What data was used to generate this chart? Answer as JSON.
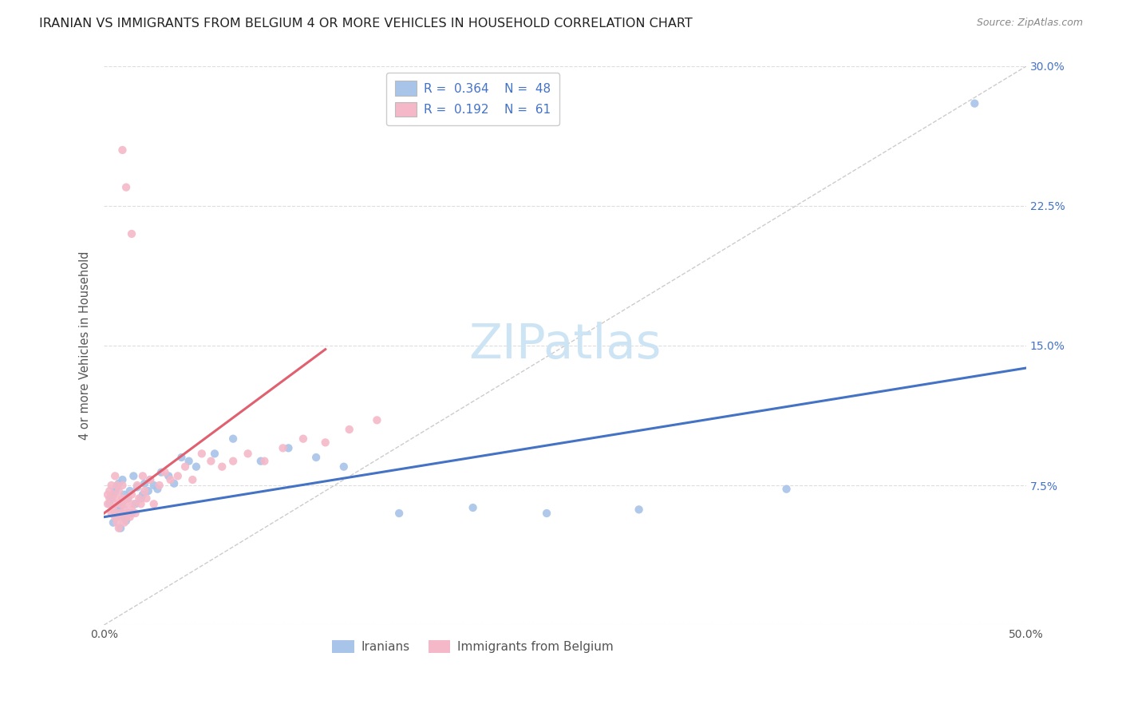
{
  "title": "IRANIAN VS IMMIGRANTS FROM BELGIUM 4 OR MORE VEHICLES IN HOUSEHOLD CORRELATION CHART",
  "source": "Source: ZipAtlas.com",
  "ylabel": "4 or more Vehicles in Household",
  "xlim": [
    0.0,
    0.5
  ],
  "ylim": [
    0.0,
    0.3
  ],
  "iranian_color": "#a8c4e8",
  "iranian_line_color": "#4472c4",
  "belgian_color": "#f4b8c8",
  "belgian_line_color": "#e06070",
  "R_iranian": "0.364",
  "N_iranian": "48",
  "R_belgian": "0.192",
  "N_belgian": "61",
  "watermark_text": "ZIPatlas",
  "watermark_color": "#cde4f5",
  "grid_color": "#dddddd",
  "title_color": "#222222",
  "source_color": "#888888",
  "tick_color": "#4472c4",
  "ylabel_color": "#555555",
  "iranian_x": [
    0.003,
    0.004,
    0.005,
    0.005,
    0.006,
    0.006,
    0.007,
    0.007,
    0.008,
    0.008,
    0.009,
    0.009,
    0.01,
    0.01,
    0.011,
    0.011,
    0.012,
    0.013,
    0.014,
    0.015,
    0.016,
    0.017,
    0.018,
    0.02,
    0.021,
    0.022,
    0.024,
    0.025,
    0.027,
    0.029,
    0.031,
    0.035,
    0.038,
    0.042,
    0.046,
    0.05,
    0.06,
    0.07,
    0.085,
    0.1,
    0.115,
    0.13,
    0.16,
    0.2,
    0.24,
    0.29,
    0.37,
    0.472
  ],
  "iranian_y": [
    0.065,
    0.068,
    0.055,
    0.07,
    0.06,
    0.072,
    0.058,
    0.074,
    0.062,
    0.076,
    0.064,
    0.052,
    0.066,
    0.078,
    0.058,
    0.07,
    0.056,
    0.068,
    0.072,
    0.06,
    0.08,
    0.065,
    0.074,
    0.068,
    0.07,
    0.076,
    0.072,
    0.078,
    0.075,
    0.073,
    0.082,
    0.08,
    0.076,
    0.09,
    0.088,
    0.085,
    0.092,
    0.1,
    0.088,
    0.095,
    0.09,
    0.085,
    0.06,
    0.063,
    0.06,
    0.062,
    0.073,
    0.28
  ],
  "belgian_x": [
    0.002,
    0.002,
    0.003,
    0.003,
    0.004,
    0.004,
    0.005,
    0.005,
    0.006,
    0.006,
    0.006,
    0.007,
    0.007,
    0.007,
    0.008,
    0.008,
    0.008,
    0.009,
    0.009,
    0.01,
    0.01,
    0.01,
    0.011,
    0.011,
    0.012,
    0.012,
    0.013,
    0.013,
    0.014,
    0.015,
    0.015,
    0.016,
    0.017,
    0.018,
    0.019,
    0.02,
    0.021,
    0.022,
    0.023,
    0.025,
    0.027,
    0.03,
    0.033,
    0.036,
    0.04,
    0.044,
    0.048,
    0.053,
    0.058,
    0.064,
    0.07,
    0.078,
    0.087,
    0.097,
    0.108,
    0.12,
    0.133,
    0.148,
    0.01,
    0.012,
    0.015
  ],
  "belgian_y": [
    0.065,
    0.07,
    0.068,
    0.072,
    0.06,
    0.075,
    0.062,
    0.07,
    0.058,
    0.065,
    0.08,
    0.055,
    0.068,
    0.075,
    0.052,
    0.06,
    0.072,
    0.058,
    0.065,
    0.06,
    0.068,
    0.075,
    0.055,
    0.062,
    0.058,
    0.065,
    0.06,
    0.068,
    0.058,
    0.062,
    0.07,
    0.065,
    0.06,
    0.075,
    0.068,
    0.065,
    0.08,
    0.072,
    0.068,
    0.078,
    0.065,
    0.075,
    0.082,
    0.078,
    0.08,
    0.085,
    0.078,
    0.092,
    0.088,
    0.085,
    0.088,
    0.092,
    0.088,
    0.095,
    0.1,
    0.098,
    0.105,
    0.11,
    0.255,
    0.235,
    0.21
  ],
  "iran_line_x0": 0.0,
  "iran_line_y0": 0.058,
  "iran_line_x1": 0.5,
  "iran_line_y1": 0.138,
  "belg_line_x0": 0.0,
  "belg_line_y0": 0.06,
  "belg_line_x1": 0.12,
  "belg_line_y1": 0.148
}
